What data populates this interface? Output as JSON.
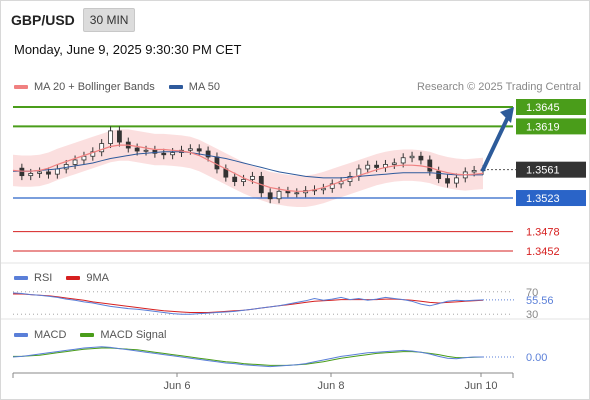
{
  "header": {
    "symbol": "GBP/USD",
    "interval": "30 MIN",
    "datetime": "Monday, June 9, 2025 9:30:30 PM CET"
  },
  "legend": {
    "ma20_label": "MA 20 + Bollinger Bands",
    "ma50_label": "MA 50",
    "credit": "Research © 2025 Trading Central"
  },
  "colors": {
    "ma20": "#f08080",
    "ma50": "#2e5a9c",
    "resistance": "#4a9d1a",
    "support": "#2a64c8",
    "red_level": "#d62020",
    "arrow": "#2d5b9a",
    "band": "#f9d4d4",
    "macd": "#5a7fd8",
    "macd_signal": "#4a9d1a",
    "rsi": "#5a7fd8",
    "rsi_ma": "#d62020"
  },
  "chart_data": [
    {
      "type": "candlestick",
      "title": "GBP/USD",
      "x_ticks": [
        "Jun 6",
        "Jun 8",
        "Jun 10"
      ],
      "ylim": [
        1.3452,
        1.3645
      ],
      "last_price": "1.3561",
      "levels": [
        {
          "value": "1.3645",
          "kind": "resistance"
        },
        {
          "value": "1.3619",
          "kind": "resistance"
        },
        {
          "value": "1.3523",
          "kind": "support"
        },
        {
          "value": "1.3478",
          "kind": "red"
        },
        {
          "value": "1.3452",
          "kind": "red"
        }
      ],
      "close_series": [
        1.3563,
        1.3553,
        1.3556,
        1.3558,
        1.3555,
        1.3562,
        1.3568,
        1.3574,
        1.3579,
        1.3585,
        1.3596,
        1.3613,
        1.3598,
        1.359,
        1.3586,
        1.3587,
        1.3583,
        1.3581,
        1.3584,
        1.3587,
        1.3589,
        1.3586,
        1.3578,
        1.3562,
        1.3551,
        1.3545,
        1.3548,
        1.3552,
        1.353,
        1.3522,
        1.3532,
        1.353,
        1.353,
        1.3533,
        1.3534,
        1.3536,
        1.3542,
        1.3545,
        1.3552,
        1.3562,
        1.3567,
        1.3564,
        1.3568,
        1.357,
        1.3577,
        1.3579,
        1.3574,
        1.3559,
        1.3549,
        1.3543,
        1.355,
        1.3558,
        1.356,
        1.3561
      ],
      "ma20_series": [
        1.356,
        1.3559,
        1.3559,
        1.356,
        1.3563,
        1.3568,
        1.3572,
        1.3576,
        1.358,
        1.3584,
        1.3588,
        1.3592,
        1.3594,
        1.3594,
        1.3592,
        1.359,
        1.3588,
        1.3588,
        1.3587,
        1.3586,
        1.3584,
        1.358,
        1.3574,
        1.3568,
        1.3562,
        1.3556,
        1.355,
        1.3545,
        1.3541,
        1.3537,
        1.3535,
        1.3533,
        1.3532,
        1.3532,
        1.3534,
        1.3537,
        1.3541,
        1.3545,
        1.3549,
        1.3553,
        1.3557,
        1.3561,
        1.3564,
        1.3566,
        1.3567,
        1.3567,
        1.3566,
        1.3564,
        1.356,
        1.3557,
        1.3555,
        1.3554,
        1.3555,
        1.3556
      ],
      "ma50_series": [
        1.3559,
        1.3559,
        1.3559,
        1.356,
        1.3561,
        1.3562,
        1.3564,
        1.3566,
        1.3568,
        1.357,
        1.3573,
        1.3576,
        1.3578,
        1.358,
        1.3582,
        1.3583,
        1.3584,
        1.3585,
        1.3585,
        1.3585,
        1.3584,
        1.3582,
        1.358,
        1.3578,
        1.3576,
        1.3573,
        1.357,
        1.3567,
        1.3564,
        1.3561,
        1.3558,
        1.3556,
        1.3554,
        1.3552,
        1.3551,
        1.355,
        1.355,
        1.355,
        1.3551,
        1.3552,
        1.3553,
        1.3554,
        1.3555,
        1.3556,
        1.3557,
        1.3557,
        1.3557,
        1.3557,
        1.3556,
        1.3555,
        1.3554,
        1.3554,
        1.3554,
        1.3554
      ],
      "band_width": 0.0021,
      "projection_target": 1.3645
    },
    {
      "type": "line",
      "title": "RSI",
      "series": [
        {
          "name": "RSI",
          "values": [
            68,
            67,
            65,
            64,
            62,
            60,
            57,
            55,
            52,
            50,
            47,
            44,
            42,
            40,
            39,
            37,
            35,
            33,
            31,
            30,
            30,
            31,
            32,
            33,
            34,
            35,
            37,
            39,
            41,
            43,
            45,
            48,
            51,
            54,
            58,
            55,
            57,
            60,
            56,
            58,
            55,
            57,
            60,
            58,
            56,
            53,
            48,
            45,
            49,
            53,
            55,
            54,
            55,
            55.56
          ]
        },
        {
          "name": "9MA",
          "values": [
            66,
            66,
            65,
            64,
            63,
            61,
            59,
            57,
            55,
            52,
            50,
            48,
            46,
            44,
            42,
            40,
            38,
            36,
            35,
            34,
            33,
            33,
            33,
            34,
            35,
            36,
            37,
            39,
            41,
            43,
            45,
            47,
            49,
            51,
            53,
            54,
            55,
            56,
            56,
            56,
            56,
            56,
            57,
            57,
            56,
            55,
            53,
            51,
            50,
            51,
            52,
            53,
            54,
            55
          ]
        }
      ],
      "ylim": [
        25,
        75
      ],
      "y_ticks": [
        "70",
        "30"
      ],
      "last_value": "55.56"
    },
    {
      "type": "line",
      "title": "MACD",
      "series": [
        {
          "name": "MACD",
          "values": [
            0.0,
            0.1,
            0.3,
            0.5,
            0.7,
            0.9,
            1.1,
            1.3,
            1.5,
            1.6,
            1.7,
            1.6,
            1.4,
            1.2,
            1.0,
            0.8,
            0.6,
            0.4,
            0.2,
            0.0,
            -0.2,
            -0.4,
            -0.6,
            -0.8,
            -1.0,
            -1.1,
            -1.3,
            -1.4,
            -1.5,
            -1.6,
            -1.5,
            -1.4,
            -1.3,
            -1.1,
            -0.8,
            -0.5,
            -0.2,
            0.1,
            0.3,
            0.5,
            0.7,
            0.8,
            0.9,
            1.0,
            1.1,
            1.0,
            0.8,
            0.5,
            0.1,
            -0.2,
            -0.3,
            -0.1,
            0.0,
            0.0
          ]
        },
        {
          "name": "MACD Signal",
          "values": [
            0.1,
            0.1,
            0.2,
            0.3,
            0.5,
            0.7,
            0.9,
            1.1,
            1.3,
            1.4,
            1.5,
            1.5,
            1.4,
            1.3,
            1.2,
            1.0,
            0.8,
            0.6,
            0.4,
            0.2,
            0.0,
            -0.2,
            -0.4,
            -0.6,
            -0.8,
            -0.9,
            -1.1,
            -1.2,
            -1.3,
            -1.4,
            -1.4,
            -1.4,
            -1.3,
            -1.2,
            -1.0,
            -0.8,
            -0.5,
            -0.2,
            0.0,
            0.2,
            0.4,
            0.6,
            0.7,
            0.8,
            0.9,
            0.9,
            0.8,
            0.6,
            0.4,
            0.1,
            -0.1,
            -0.1,
            -0.05,
            0.0
          ]
        }
      ],
      "ylim": [
        -2,
        2
      ],
      "last_value": "0.00"
    }
  ]
}
